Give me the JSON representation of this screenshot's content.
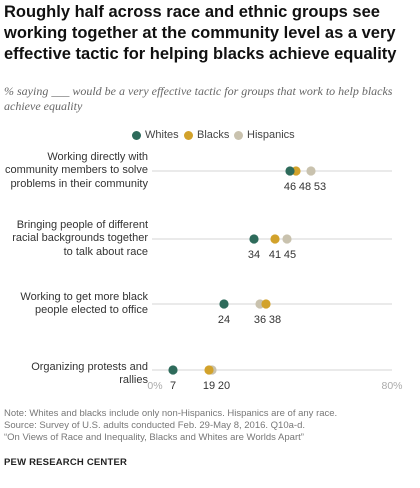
{
  "title": "Roughly half across race and ethnic groups see working together at the community level as a very effective tactic for helping blacks achieve equality",
  "subtitle": "% saying ___ would be a very effective tactic for groups that work to help blacks achieve equality",
  "notes": [
    "Note: Whites and blacks include only non-Hispanics. Hispanics are of any race.",
    "Source: Survey of U.S. adults conducted Feb. 29-May 8, 2016. Q10a-d.",
    "“On Views of Race and Inequality, Blacks and Whites are Worlds Apart”"
  ],
  "source_org": "PEW RESEARCH CENTER",
  "colors": {
    "Whites": "#2e6b5b",
    "Blacks": "#d2a22b",
    "Hispanics": "#c9c2ae"
  },
  "chart_data": {
    "type": "scatter",
    "categories": [
      "Working directly with community members to solve problems in their community",
      "Bringing people of different racial backgrounds together to talk about race",
      "Working to get more black people elected to office",
      "Organizing protests and rallies"
    ],
    "category_lines": [
      [
        "Working directly with",
        "community members to solve",
        "problems in their community"
      ],
      [
        "Bringing people of different",
        "racial backgrounds together",
        "to talk about race"
      ],
      [
        "Working to get more black",
        "people elected to office"
      ],
      [
        "Organizing protests and",
        "rallies"
      ]
    ],
    "series": [
      {
        "name": "Whites",
        "values": [
          46,
          34,
          24,
          7
        ]
      },
      {
        "name": "Blacks",
        "values": [
          48,
          41,
          38,
          19
        ]
      },
      {
        "name": "Hispanics",
        "values": [
          53,
          45,
          36,
          20
        ]
      }
    ],
    "xlim": [
      0,
      80
    ],
    "x_tick_labels": [
      "0%",
      "80%"
    ],
    "grid": false,
    "legend": "top"
  }
}
